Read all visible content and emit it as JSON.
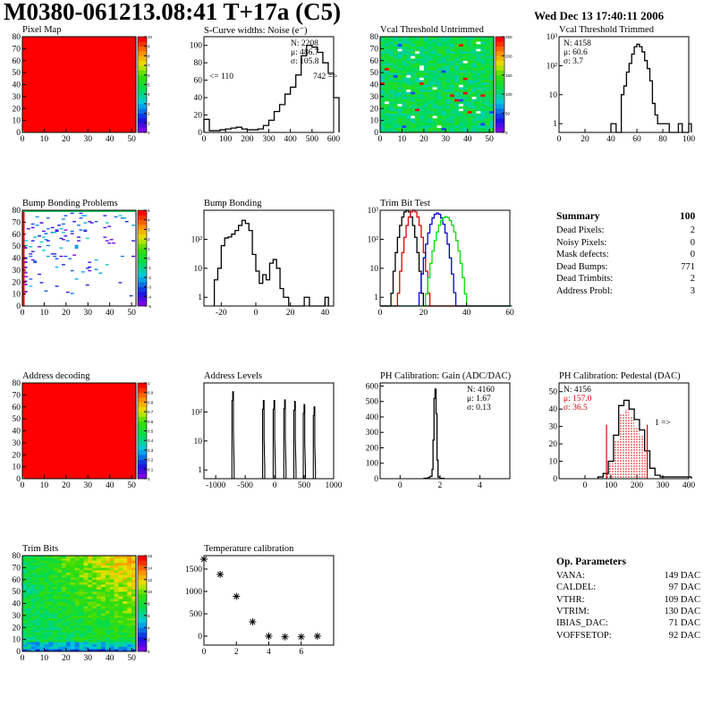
{
  "header": {
    "title": "M0380-061213.08:41 T+17a (C5)",
    "date": "Wed Dec 13 17:40:11 2006"
  },
  "summary": {
    "title": "Summary",
    "value": "100",
    "rows": [
      {
        "label": "Dead Pixels:",
        "value": "2"
      },
      {
        "label": "Noisy Pixels:",
        "value": "0"
      },
      {
        "label": "Mask defects:",
        "value": "0"
      },
      {
        "label": "Dead Bumps:",
        "value": "771"
      },
      {
        "label": "Dead Trimbits:",
        "value": "2"
      },
      {
        "label": "Address Probl:",
        "value": "3"
      }
    ]
  },
  "op_parameters": {
    "title": "Op. Parameters",
    "rows": [
      {
        "label": "VANA:",
        "value": "149 DAC"
      },
      {
        "label": "CALDEL:",
        "value": "97 DAC"
      },
      {
        "label": "VTHR:",
        "value": "109 DAC"
      },
      {
        "label": "VTRIM:",
        "value": "130 DAC"
      },
      {
        "label": "IBIAS_DAC:",
        "value": "71 DAC"
      },
      {
        "label": "VOFFSETOP:",
        "value": "92 DAC"
      }
    ]
  },
  "chart_data": [
    {
      "id": "pixel-map",
      "type": "heatmap",
      "title": "Pixel Map",
      "xlim": [
        0,
        52
      ],
      "ylim": [
        0,
        80
      ],
      "xticks": [
        "0",
        "10",
        "20",
        "30",
        "40",
        "50"
      ],
      "yticks": [
        "0",
        "10",
        "20",
        "30",
        "40",
        "50",
        "60",
        "70",
        "80"
      ],
      "zlim": [
        0,
        10
      ],
      "zticks": [
        "0",
        "1",
        "2",
        "3",
        "4",
        "5",
        "6",
        "7",
        "8",
        "9",
        "10"
      ],
      "pattern": "uniform",
      "fill_value": 10
    },
    {
      "id": "scurve-noise",
      "type": "bar",
      "title": "S-Curve widths: Noise (e⁻)",
      "xlim": [
        0,
        600
      ],
      "ylim": [
        0,
        110
      ],
      "xticks": [
        "0",
        "100",
        "200",
        "300",
        "400",
        "500",
        "600"
      ],
      "yticks": [
        "0",
        "20",
        "40",
        "60",
        "80",
        "100"
      ],
      "x": [
        0,
        25,
        50,
        75,
        100,
        125,
        150,
        175,
        200,
        225,
        250,
        275,
        300,
        325,
        350,
        375,
        400,
        425,
        450,
        475,
        500,
        525,
        550,
        575,
        600
      ],
      "values": [
        15,
        2,
        2,
        3,
        4,
        5,
        6,
        4,
        3,
        3,
        4,
        8,
        14,
        24,
        32,
        44,
        52,
        66,
        88,
        100,
        98,
        92,
        80,
        68,
        40
      ],
      "stats": {
        "n": "N: 2208",
        "mean": "μ: 486.7",
        "sigma": "σ: 105.8"
      },
      "annotations": {
        "underflow": "<= 110",
        "overflow": "742 =>"
      }
    },
    {
      "id": "vcal-untrimmed",
      "type": "heatmap",
      "title": "Vcal Threshold Untrimmed",
      "xlim": [
        0,
        52
      ],
      "ylim": [
        0,
        80
      ],
      "xticks": [
        "0",
        "10",
        "20",
        "30",
        "40",
        "50"
      ],
      "yticks": [
        "0",
        "10",
        "20",
        "30",
        "40",
        "50",
        "60",
        "70",
        "80"
      ],
      "zlim": [
        0,
        255
      ],
      "zticks": [
        "0",
        "50",
        "100",
        "150",
        "200",
        "250"
      ],
      "pattern": "noise",
      "mean_value": 110
    },
    {
      "id": "vcal-trimmed",
      "type": "bar",
      "title": "Vcal Threshold Trimmed",
      "log_y": true,
      "xlim": [
        0,
        100
      ],
      "ylim": [
        0.5,
        1000
      ],
      "xticks": [
        "0",
        "20",
        "40",
        "60",
        "80",
        "100"
      ],
      "yticks": [
        "1",
        "10",
        "10²",
        "10³"
      ],
      "x": [
        40,
        42,
        44,
        46,
        48,
        50,
        52,
        54,
        56,
        58,
        60,
        62,
        64,
        66,
        68,
        70,
        72,
        74,
        76,
        78,
        80,
        82,
        92,
        100
      ],
      "values": [
        1,
        1,
        0,
        0,
        10,
        20,
        60,
        120,
        250,
        450,
        550,
        450,
        300,
        150,
        80,
        30,
        5,
        2,
        1,
        1,
        1,
        1,
        1,
        1
      ],
      "stats": {
        "n": "N: 4158",
        "mean": "μ: 60.6",
        "sigma": "σ:  3.7"
      }
    },
    {
      "id": "bump-bonding-problems",
      "type": "heatmap",
      "title": "Bump Bonding Problems",
      "xlim": [
        0,
        52
      ],
      "ylim": [
        0,
        80
      ],
      "xticks": [
        "0",
        "10",
        "20",
        "30",
        "40",
        "50"
      ],
      "yticks": [
        "0",
        "10",
        "20",
        "30",
        "40",
        "50",
        "60",
        "70",
        "80"
      ],
      "zlim": [
        -5,
        5
      ],
      "zticks": [
        "-5",
        "-4",
        "-3",
        "-2",
        "-1",
        "0",
        "1",
        "2",
        "3",
        "4",
        "5"
      ],
      "pattern": "sparse-triangle"
    },
    {
      "id": "bump-bonding",
      "type": "bar",
      "title": "Bump Bonding",
      "log_y": true,
      "xlim": [
        -30,
        45
      ],
      "ylim": [
        0.5,
        1000
      ],
      "xticks": [
        "-20",
        "0",
        "20",
        "40"
      ],
      "yticks": [
        "1",
        "10",
        "10²"
      ],
      "x": [
        -24,
        -22,
        -20,
        -18,
        -16,
        -14,
        -12,
        -10,
        -8,
        -6,
        -4,
        -2,
        0,
        2,
        4,
        6,
        8,
        10,
        12,
        14,
        16,
        28,
        40
      ],
      "values": [
        4,
        10,
        60,
        110,
        120,
        150,
        200,
        300,
        450,
        350,
        200,
        30,
        8,
        3,
        6,
        4,
        15,
        20,
        10,
        2,
        1,
        1,
        1
      ]
    },
    {
      "id": "trim-bit-test",
      "type": "line",
      "title": "Trim Bit Test",
      "log_y": true,
      "xlim": [
        0,
        60
      ],
      "ylim": [
        0.5,
        1000
      ],
      "xticks": [
        "0",
        "20",
        "40",
        "60"
      ],
      "yticks": [
        "1",
        "10",
        "10²",
        "10³"
      ],
      "series": [
        {
          "name": "trim bit 1",
          "color": "#000000",
          "center": 12,
          "peak": 1000,
          "width": 6
        },
        {
          "name": "trim bit 2",
          "color": "#e00000",
          "center": 15,
          "peak": 1000,
          "width": 6
        },
        {
          "name": "trim bit 3",
          "color": "#0000e0",
          "center": 26,
          "peak": 800,
          "width": 7
        },
        {
          "name": "trim bit 4",
          "color": "#00e000",
          "center": 30,
          "peak": 600,
          "width": 8
        }
      ]
    },
    {
      "id": "address-decoding",
      "type": "heatmap",
      "title": "Address decoding",
      "xlim": [
        0,
        52
      ],
      "ylim": [
        0,
        80
      ],
      "xticks": [
        "0",
        "10",
        "20",
        "30",
        "40",
        "50"
      ],
      "yticks": [
        "0",
        "10",
        "20",
        "30",
        "40",
        "50",
        "60",
        "70",
        "80"
      ],
      "zlim": [
        0,
        1
      ],
      "zticks": [
        "0",
        "0.1",
        "0.2",
        "0.3",
        "0.4",
        "0.5",
        "0.6",
        "0.7",
        "0.8",
        "0.9",
        "1"
      ],
      "pattern": "uniform",
      "fill_value": 1
    },
    {
      "id": "address-levels",
      "type": "bar",
      "title": "Address Levels",
      "log_y": true,
      "xlim": [
        -1200,
        1000
      ],
      "ylim": [
        0.5,
        1000
      ],
      "xticks": [
        "-1000",
        "-500",
        "0",
        "500",
        "1000"
      ],
      "yticks": [
        "1",
        "10",
        "10²"
      ],
      "peaks": [
        -700,
        -180,
        0,
        180,
        350,
        510,
        680
      ],
      "peak_values": [
        500,
        250,
        250,
        260,
        230,
        180,
        150
      ]
    },
    {
      "id": "ph-gain",
      "type": "bar",
      "title": "PH Calibration: Gain (ADC/DAC)",
      "xlim": [
        -1,
        5.5
      ],
      "ylim": [
        0,
        620
      ],
      "xticks": [
        "0",
        "2",
        "4"
      ],
      "yticks": [
        "0",
        "100",
        "200",
        "300",
        "400",
        "500",
        "600"
      ],
      "x": [
        1.2,
        1.4,
        1.5,
        1.6,
        1.65,
        1.7,
        1.75,
        1.8,
        1.85,
        1.9,
        2.0
      ],
      "values": [
        3,
        8,
        15,
        60,
        250,
        520,
        580,
        420,
        120,
        10,
        2
      ],
      "stats": {
        "n": "N: 4160",
        "mean": "μ: 1.67",
        "sigma": "σ: 0.13"
      }
    },
    {
      "id": "ph-pedestal",
      "type": "bar",
      "title": "PH Calibration: Pedestal (DAC)",
      "xlim": [
        -100,
        400
      ],
      "ylim": [
        0,
        55
      ],
      "xticks": [
        "0",
        "100",
        "200",
        "300",
        "400"
      ],
      "yticks": [
        "0",
        "10",
        "20",
        "30",
        "40",
        "50"
      ],
      "x": [
        50,
        70,
        90,
        110,
        130,
        150,
        170,
        190,
        210,
        230,
        250,
        270,
        290,
        310,
        330,
        350,
        370,
        390
      ],
      "values": [
        1,
        3,
        10,
        25,
        42,
        45,
        40,
        34,
        28,
        16,
        6,
        2,
        1,
        1,
        1,
        1,
        1,
        1
      ],
      "fit_range": [
        83,
        240
      ],
      "fit_height": 31,
      "stats": {
        "n": "N: 4156",
        "mean": "μ: 157.0",
        "sigma": "σ: 36.5"
      },
      "annotations": {
        "overflow": "1 =>"
      }
    },
    {
      "id": "trim-bits",
      "type": "heatmap",
      "title": "Trim Bits",
      "xlim": [
        0,
        52
      ],
      "ylim": [
        0,
        80
      ],
      "xticks": [
        "0",
        "10",
        "20",
        "30",
        "40",
        "50"
      ],
      "yticks": [
        "0",
        "10",
        "20",
        "30",
        "40",
        "50",
        "60",
        "70",
        "80"
      ],
      "zlim": [
        0,
        16
      ],
      "zticks": [
        "0",
        "2",
        "4",
        "6",
        "8",
        "10",
        "12",
        "14",
        "16"
      ],
      "pattern": "gradient"
    },
    {
      "id": "temperature-calibration",
      "type": "scatter",
      "title": "Temperature calibration",
      "xlim": [
        0,
        8
      ],
      "ylim": [
        -200,
        1800
      ],
      "xticks": [
        "0",
        "2",
        "4",
        "6"
      ],
      "yticks": [
        "0",
        "500",
        "1000",
        "1500"
      ],
      "x": [
        0,
        1,
        2,
        3,
        4,
        5,
        6,
        7
      ],
      "values": [
        1720,
        1380,
        890,
        320,
        0,
        -15,
        -15,
        0
      ],
      "marker": "asterisk"
    }
  ]
}
